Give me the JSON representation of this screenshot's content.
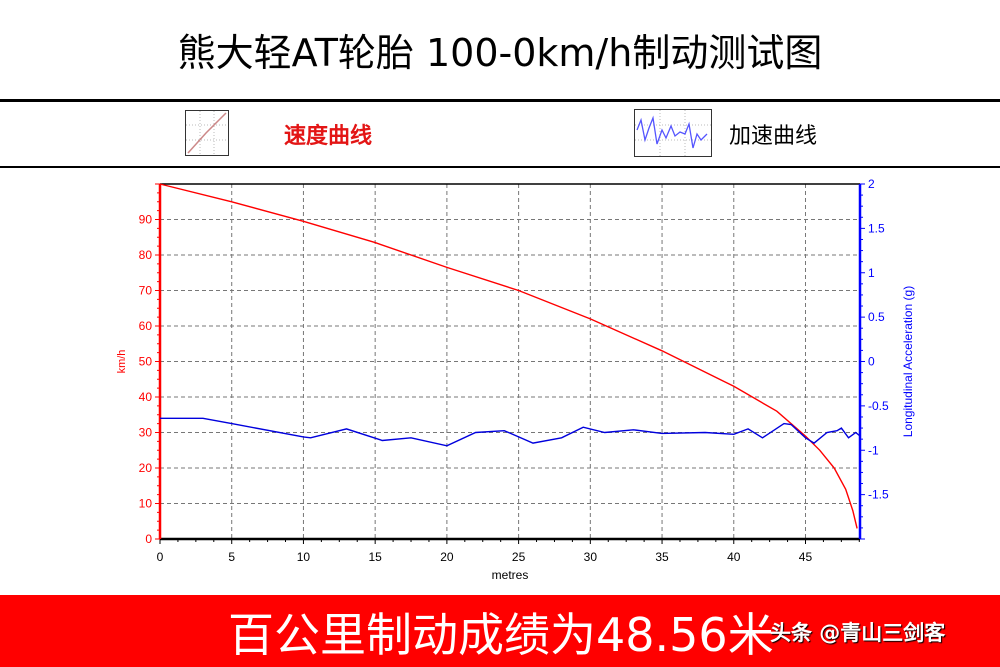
{
  "title": "熊大轻AT轮胎 100-0km/h制动测试图",
  "legend": [
    {
      "icon": "speed-curve-icon",
      "label": "速度曲线",
      "color": "#e31515"
    },
    {
      "icon": "acceleration-curve-icon",
      "label": "加速曲线",
      "color": "#000000"
    }
  ],
  "footer": {
    "result": "百公里制动成绩为48.56米",
    "watermark": "头条 @青山三剑客",
    "background": "#ff0000"
  },
  "chart_data": {
    "type": "line",
    "xlabel": "metres",
    "ylabel": "km/h",
    "y2label": "Longitudinal Acceleration (g)",
    "xlim": [
      0,
      48.8
    ],
    "ylim": [
      0,
      100
    ],
    "y2lim": [
      -2,
      2
    ],
    "xticks": [
      "0",
      "5",
      "10",
      "15",
      "20",
      "25",
      "30",
      "35",
      "40",
      "45"
    ],
    "yticks": [
      "0",
      "10",
      "20",
      "30",
      "40",
      "50",
      "60",
      "70",
      "80",
      "90"
    ],
    "y2ticks": [
      "-1.5",
      "-1",
      "-0.5",
      "0",
      "0.5",
      "1",
      "1.5",
      "2"
    ],
    "grid": true,
    "series": [
      {
        "axis": "left",
        "color": "#ff0000",
        "x": [
          0,
          5,
          10,
          15,
          20,
          25,
          30,
          35,
          40,
          43,
          45,
          46,
          47,
          47.8,
          48.3,
          48.6
        ],
        "y": [
          100,
          95,
          89.5,
          83.5,
          76.5,
          70,
          62,
          53,
          43,
          36,
          29,
          25,
          20,
          14,
          8,
          3
        ]
      },
      {
        "axis": "right",
        "color": "#0000dd",
        "x": [
          0,
          3,
          5,
          10,
          10.5,
          13,
          15.5,
          17.5,
          20,
          22,
          24,
          26,
          28,
          29.5,
          31,
          33,
          35,
          38,
          40,
          41,
          42,
          43.5,
          44,
          45,
          45.6,
          46.5,
          47.2,
          47.5,
          48,
          48.5,
          48.8
        ],
        "y": [
          -0.64,
          -0.64,
          -0.7,
          -0.85,
          -0.86,
          -0.76,
          -0.89,
          -0.86,
          -0.95,
          -0.8,
          -0.78,
          -0.92,
          -0.86,
          -0.74,
          -0.8,
          -0.77,
          -0.81,
          -0.8,
          -0.82,
          -0.76,
          -0.86,
          -0.7,
          -0.71,
          -0.86,
          -0.92,
          -0.8,
          -0.78,
          -0.75,
          -0.86,
          -0.8,
          -0.84
        ]
      }
    ]
  }
}
